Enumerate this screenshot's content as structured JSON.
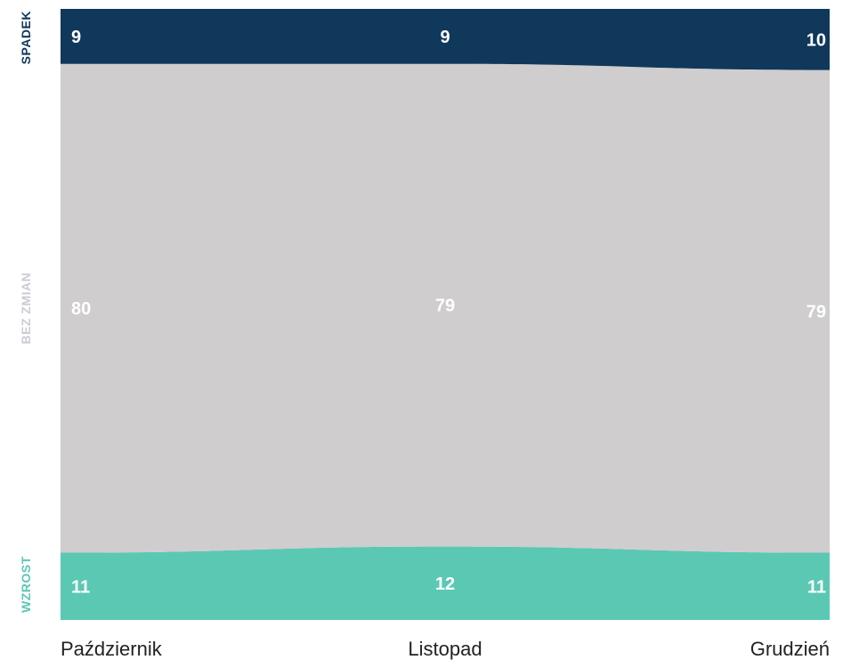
{
  "chart_data": {
    "type": "area",
    "stacked": true,
    "normalized": true,
    "categories": [
      "Październik",
      "Listopad",
      "Grudzień"
    ],
    "series": [
      {
        "name": "WZROST",
        "values": [
          11,
          12,
          11
        ],
        "color": "#5bc8b4"
      },
      {
        "name": "BEZ ZMIAN",
        "values": [
          80,
          79,
          79
        ],
        "color": "#cfcdce"
      },
      {
        "name": "SPADEK",
        "values": [
          9,
          9,
          10
        ],
        "color": "#10385b"
      }
    ],
    "legend_colors": {
      "WZROST": "#5bc8b4",
      "BEZ ZMIAN": "#c9ccd3",
      "SPADEK": "#10385b"
    },
    "ylim": [
      0,
      100
    ],
    "grid": false,
    "legend_position": "left-vertical",
    "title": "",
    "xlabel": "",
    "ylabel": ""
  }
}
